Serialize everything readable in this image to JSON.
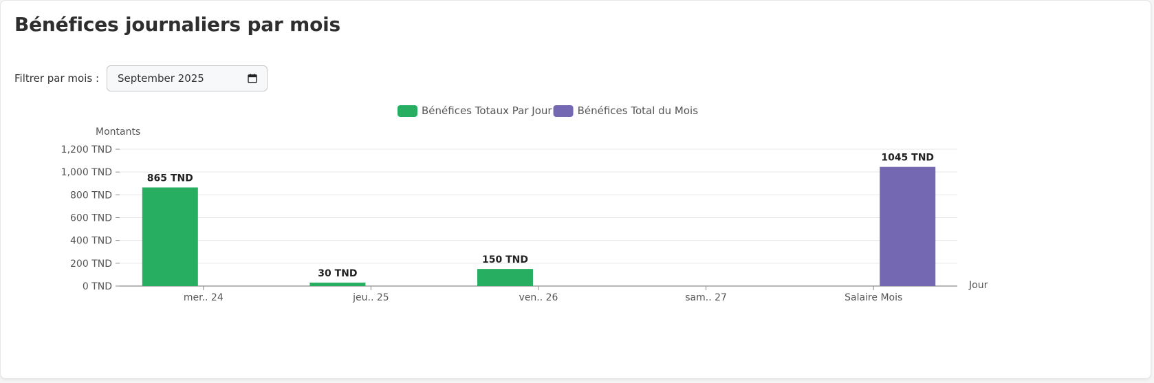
{
  "page": {
    "title": "Bénéfices journaliers par mois"
  },
  "filter": {
    "label": "Filtrer par mois :",
    "value": "September 2025"
  },
  "icons": {
    "month_picker": "calendar-icon"
  },
  "colors": {
    "daily": "#27ae60",
    "monthly": "#7568b3",
    "text": "#555555",
    "grid": "#e5e7eb",
    "axis": "#8a8a8a"
  },
  "chart_data": {
    "type": "bar",
    "categories": [
      "mer.. 24",
      "jeu.. 25",
      "ven.. 26",
      "sam.. 27",
      "Salaire Mois"
    ],
    "series": [
      {
        "name": "Bénéfices Totaux Par Jour",
        "values": [
          865,
          30,
          150,
          null,
          null
        ],
        "color": "#27ae60"
      },
      {
        "name": "Bénéfices Total du Mois",
        "values": [
          null,
          null,
          null,
          null,
          1045
        ],
        "color": "#7568b3"
      }
    ],
    "data_labels": [
      "865 TND",
      "30 TND",
      "150 TND",
      "",
      "1045 TND"
    ],
    "ylabel": "Montants",
    "xlabel": "Jour",
    "ylim": [
      0,
      1200
    ],
    "yticks": [
      0,
      200,
      400,
      600,
      800,
      1000,
      1200
    ],
    "ytick_labels": [
      "0 TND",
      "200 TND",
      "400 TND",
      "600 TND",
      "800 TND",
      "1,000 TND",
      "1,200 TND"
    ],
    "grid": true,
    "legend_position": "top-center"
  }
}
